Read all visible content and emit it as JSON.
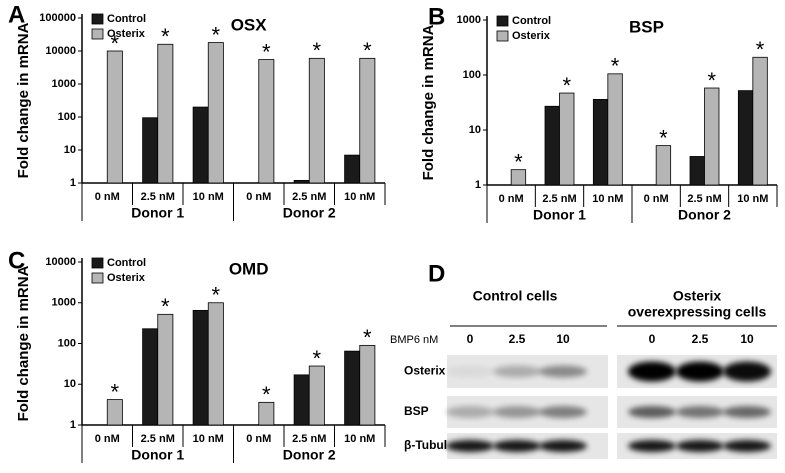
{
  "chart_data": [
    {
      "type": "bar",
      "panel": "A",
      "title": "OSX",
      "y_label": "Fold change in mRNA",
      "log": true,
      "legend": "upper left",
      "categories": [
        "0 nM",
        "2.5 nM",
        "10 nM",
        "0 nM",
        "2.5 nM",
        "10 nM"
      ],
      "groups": [
        "Donor 1",
        "Donor 2"
      ],
      "series": [
        {
          "name": "Control",
          "color": "#1a1a1a",
          "values": [
            1,
            95,
            200,
            1,
            1.2,
            7
          ]
        },
        {
          "name": "Osterix",
          "color": "#b5b5b5",
          "values": [
            10000,
            16000,
            18000,
            5500,
            6000,
            6000
          ]
        }
      ],
      "annotations": [
        "*",
        "*",
        "*",
        "*",
        "*",
        "*"
      ],
      "ylim": [
        1,
        100000
      ],
      "yticks": [
        1,
        10,
        100,
        1000,
        10000,
        100000
      ]
    },
    {
      "type": "bar",
      "panel": "B",
      "title": "BSP",
      "y_label": "Fold change in mRNA",
      "log": true,
      "legend": "upper left",
      "categories": [
        "0 nM",
        "2.5 nM",
        "10 nM",
        "0 nM",
        "2.5 nM",
        "10 nM"
      ],
      "groups": [
        "Donor 1",
        "Donor 2"
      ],
      "series": [
        {
          "name": "Control",
          "color": "#1a1a1a",
          "values": [
            1,
            27,
            36,
            1,
            3.3,
            52
          ]
        },
        {
          "name": "Osterix",
          "color": "#b5b5b5",
          "values": [
            1.9,
            47,
            105,
            5.2,
            58,
            210
          ]
        }
      ],
      "annotations": [
        "*",
        "*",
        "*",
        "*",
        "*",
        "*"
      ],
      "ylim": [
        1,
        1000
      ],
      "yticks": [
        1,
        10,
        100,
        1000
      ]
    },
    {
      "type": "bar",
      "panel": "C",
      "title": "OMD",
      "y_label": "Fold change in mRNA",
      "log": true,
      "legend": "upper left",
      "categories": [
        "0 nM",
        "2.5 nM",
        "10 nM",
        "0 nM",
        "2.5 nM",
        "10 nM"
      ],
      "groups": [
        "Donor 1",
        "Donor 2"
      ],
      "series": [
        {
          "name": "Control",
          "color": "#1a1a1a",
          "values": [
            1,
            230,
            650,
            1,
            17,
            65
          ]
        },
        {
          "name": "Osterix",
          "color": "#b5b5b5",
          "values": [
            4.2,
            520,
            1000,
            3.6,
            28,
            90
          ]
        }
      ],
      "annotations": [
        "*",
        "*",
        "*",
        "*",
        "*",
        "*"
      ],
      "ylim": [
        1,
        10000
      ],
      "yticks": [
        1,
        10,
        100,
        1000,
        10000
      ]
    }
  ],
  "blot": {
    "panel": "D",
    "headers": [
      {
        "lines": [
          "Control cells"
        ]
      },
      {
        "lines": [
          "Osterix",
          "overexpressing cells"
        ]
      }
    ],
    "lane_title": "BMP6 nM",
    "lanes": [
      "0",
      "2.5",
      "10",
      "0",
      "2.5",
      "10"
    ],
    "rows": [
      "Osterix",
      "BSP",
      "β-Tubulin"
    ]
  }
}
